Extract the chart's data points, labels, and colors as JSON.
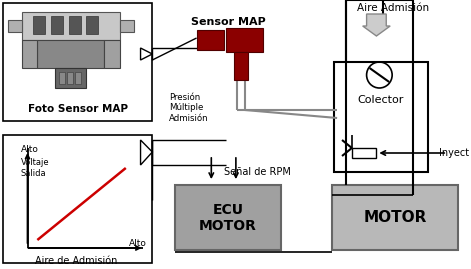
{
  "bg_color": "#ffffff",
  "sensor_map_label": "Sensor MAP",
  "foto_label": "Foto Sensor MAP",
  "aire_admision_label": "Aire Admisión",
  "colector_label": "Colector",
  "inyect_label": "Inyect",
  "motor_label": "MOTOR",
  "ecu_label": "ECU\nMOTOR",
  "presion_label": "Presión\nMúltiple\nAdmisión",
  "senal_rpm_label": "Señal de RPM",
  "alto_top_label": "Alto",
  "voltaje_label": "Voltaje\nSalida",
  "alto_right_label": "Alto",
  "aire_adm_label": "Aire de Admisión",
  "sensor_color": "#8b0000",
  "red_line_color": "#cc0000",
  "motor_box_color": "#b8b8b8",
  "ecu_box_color": "#a0a0a0",
  "pipe_color": "#888888",
  "arrow_fill": "#cccccc"
}
